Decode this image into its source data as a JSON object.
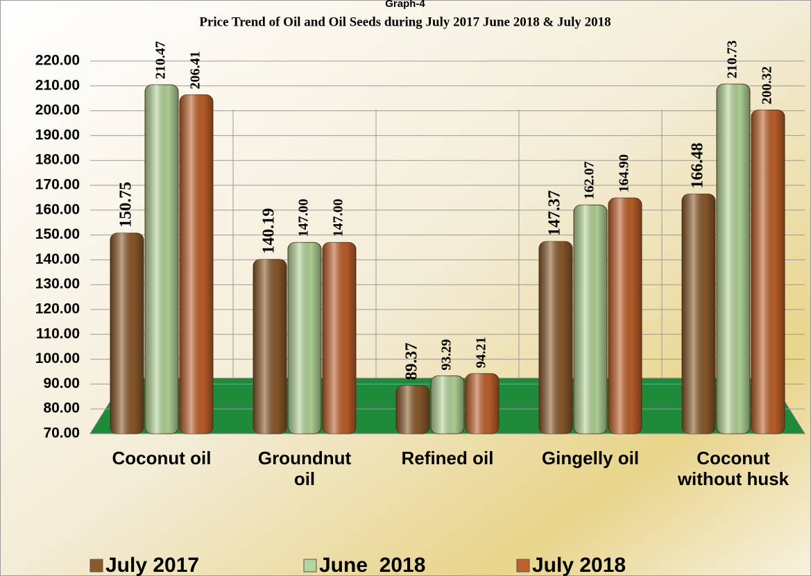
{
  "chart_data": {
    "type": "bar",
    "supertitle": "Graph-4",
    "title": "Price Trend of Oil and Oil Seeds during  July 2017  June  2018 &  July  2018",
    "categories": [
      "Coconut oil",
      "Groundnut oil",
      "Refined oil",
      "Gingelly oil",
      "Coconut without husk"
    ],
    "series": [
      {
        "name": "July 2017",
        "color": "#8b5a2b",
        "values": [
          150.75,
          140.19,
          89.37,
          147.37,
          166.48
        ],
        "value_labels": [
          "150.75",
          "140.19",
          "89.37",
          "147.37",
          "166.48"
        ]
      },
      {
        "name": "June  2018",
        "color": "#b5d69a",
        "values": [
          210.47,
          147,
          93.29,
          162.07,
          210.73
        ],
        "value_labels": [
          "210.47",
          "147.00",
          "93.29",
          "162.07",
          "210.73"
        ]
      },
      {
        "name": "July 2018",
        "color": "#c0602a",
        "values": [
          206.41,
          147,
          94.21,
          164.9,
          200.32
        ],
        "value_labels": [
          "206.41",
          "147.00",
          "94.21",
          "164.90",
          "200.32"
        ]
      }
    ],
    "ylim": [
      70,
      220
    ],
    "yticks": [
      {
        "value": 70,
        "label": "70.00"
      },
      {
        "value": 80,
        "label": "80.00"
      },
      {
        "value": 90,
        "label": "90.00"
      },
      {
        "value": 100,
        "label": "100.00"
      },
      {
        "value": 110,
        "label": "110.00"
      },
      {
        "value": 120,
        "label": "120.00"
      },
      {
        "value": 130,
        "label": "130.00"
      },
      {
        "value": 140,
        "label": "140.00"
      },
      {
        "value": 150,
        "label": "150.00"
      },
      {
        "value": 160,
        "label": "160.00"
      },
      {
        "value": 170,
        "label": "170.00"
      },
      {
        "value": 180,
        "label": "180.00"
      },
      {
        "value": 190,
        "label": "190.00"
      },
      {
        "value": 200,
        "label": "200.00"
      },
      {
        "value": 210,
        "label": "210.00"
      },
      {
        "value": 220,
        "label": "220.00"
      }
    ],
    "grid": true
  }
}
